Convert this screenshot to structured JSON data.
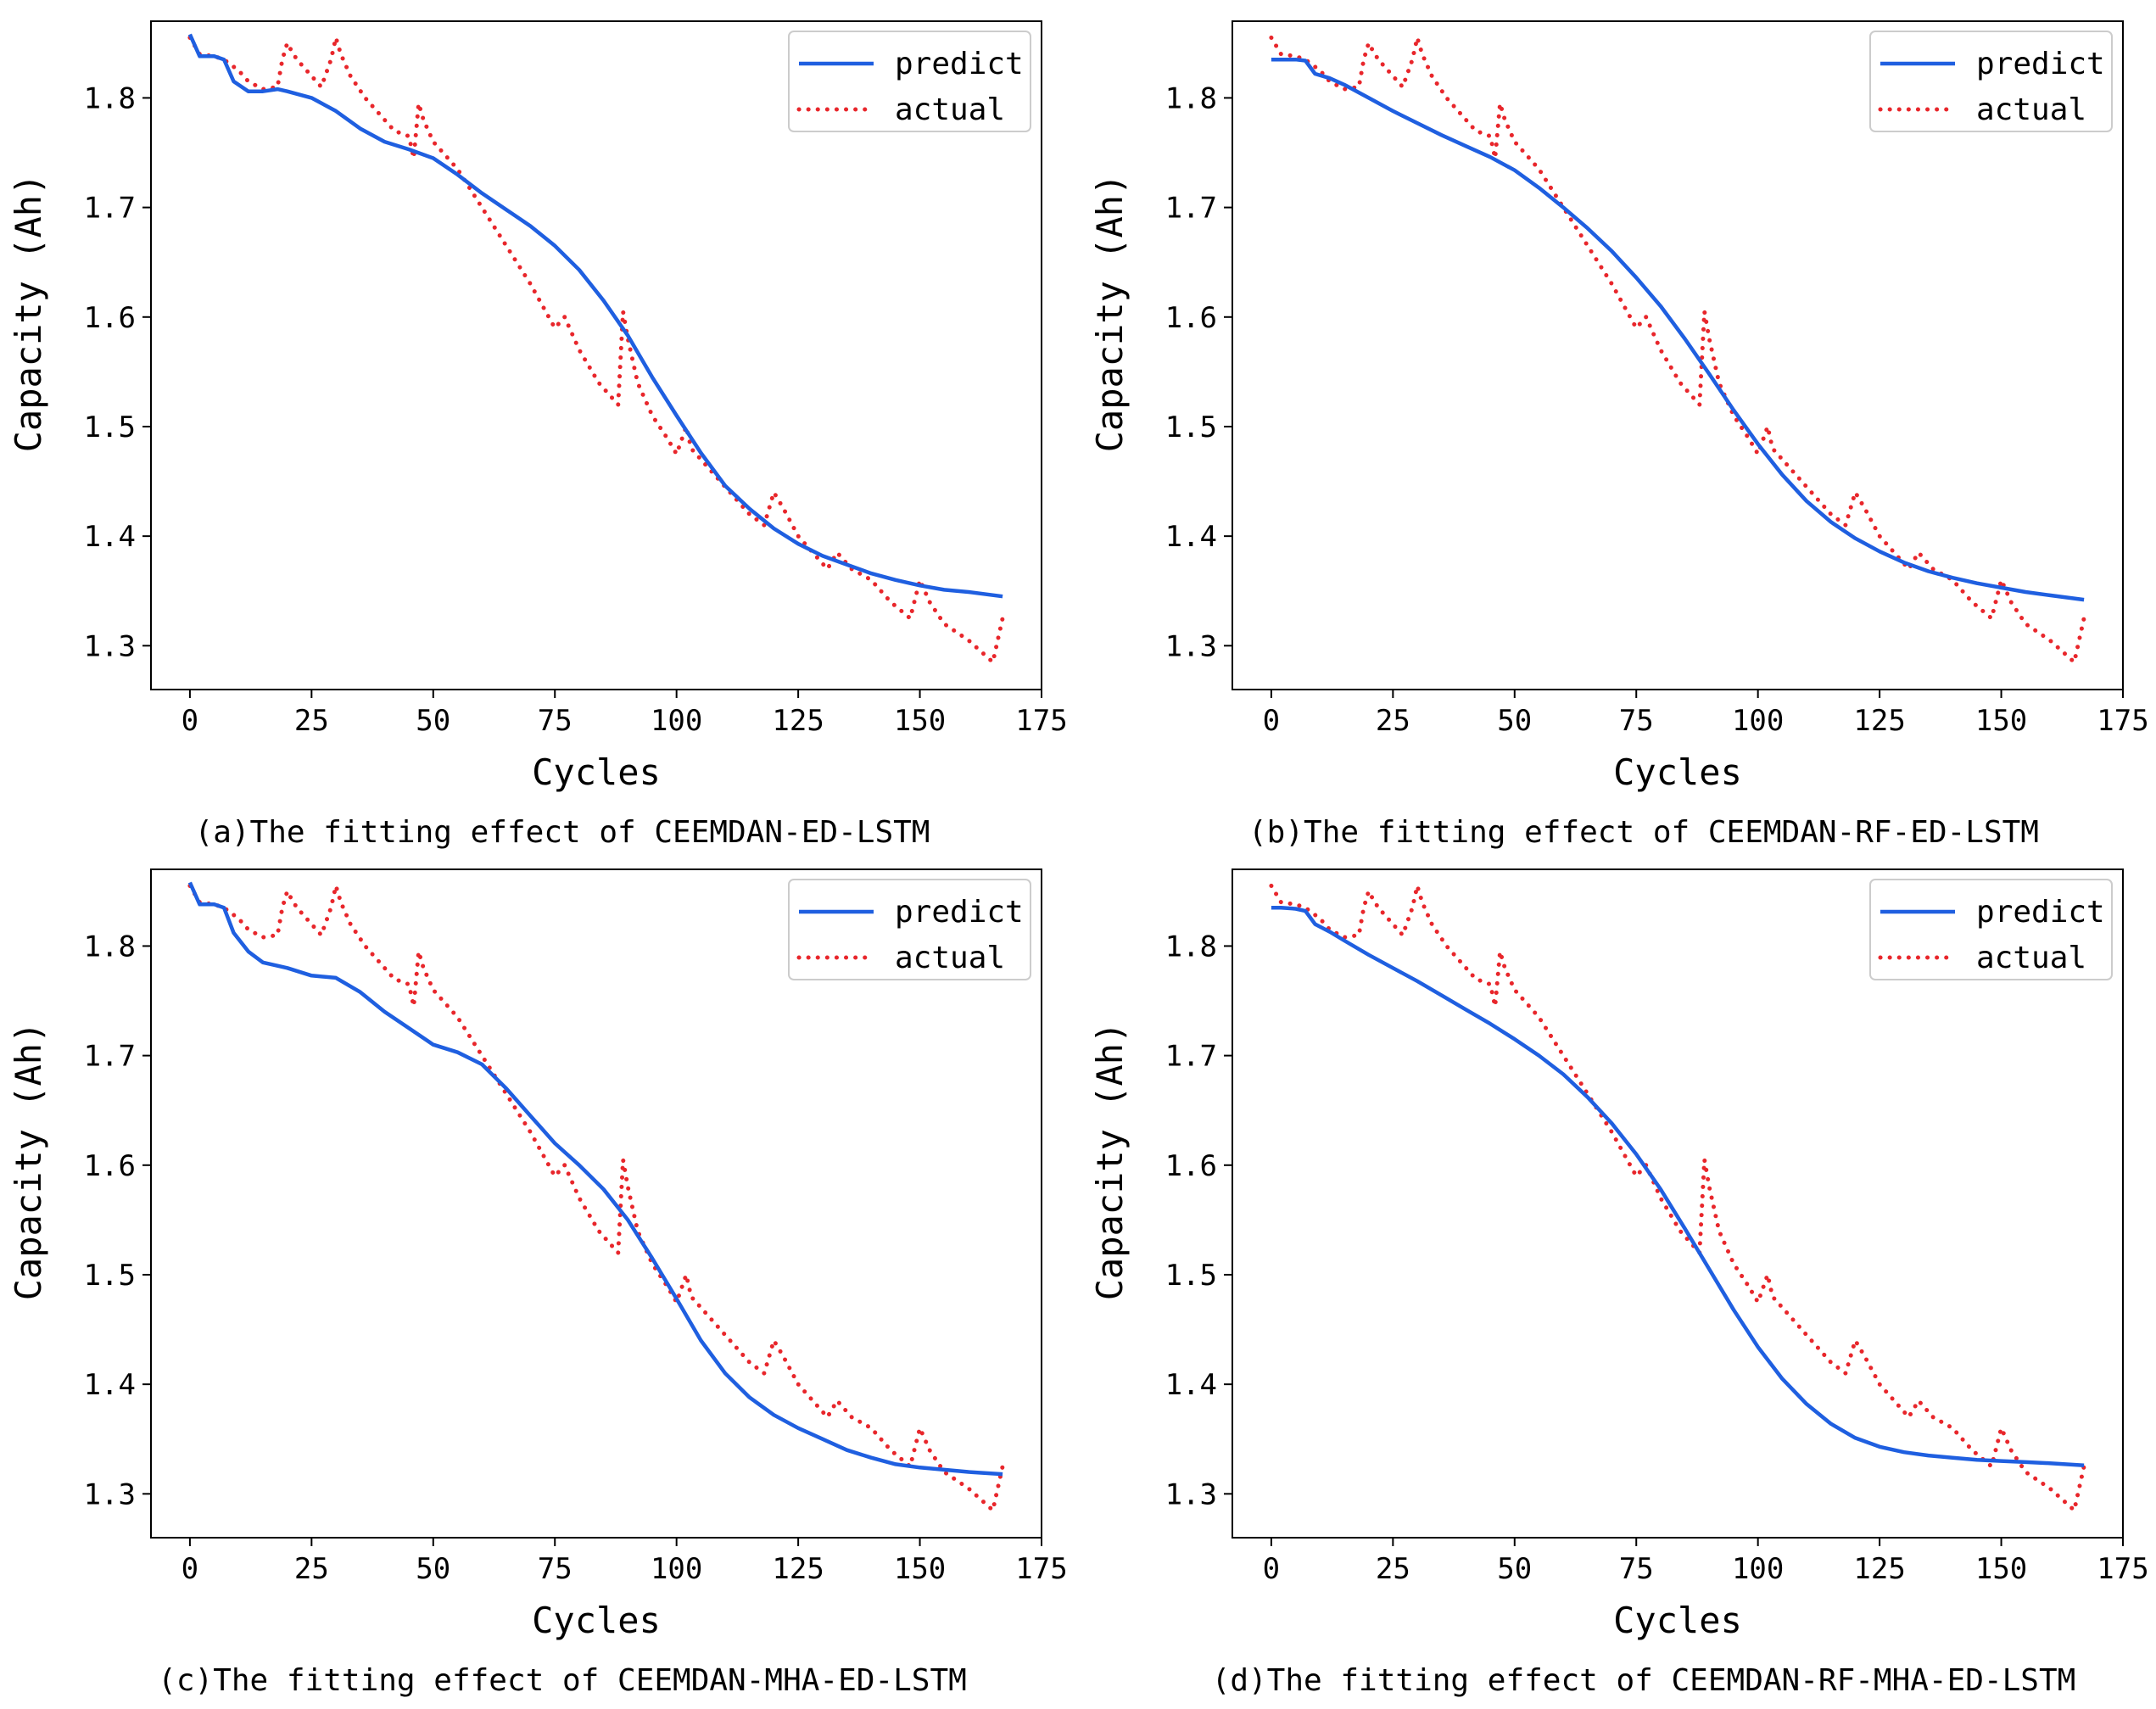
{
  "chart_data": [
    {
      "type": "line",
      "panel": "a",
      "caption": "(a)The fitting effect of CEEMDAN-ED-LSTM",
      "xlabel": "Cycles",
      "ylabel": "Capacity (Ah)",
      "xlim": [
        -8,
        175
      ],
      "ylim": [
        1.26,
        1.87
      ],
      "xticks": [
        0,
        25,
        50,
        75,
        100,
        125,
        150,
        175
      ],
      "yticks": [
        1.3,
        1.4,
        1.5,
        1.6,
        1.7,
        1.8
      ],
      "legend_position": "top-right",
      "series": [
        {
          "name": "predict",
          "style": "solid",
          "color": "#1f5fe0",
          "x": [
            0,
            2,
            5,
            7,
            9,
            12,
            15,
            18,
            20,
            25,
            30,
            35,
            40,
            45,
            50,
            55,
            60,
            65,
            70,
            75,
            80,
            85,
            90,
            95,
            100,
            105,
            110,
            115,
            120,
            125,
            130,
            135,
            140,
            145,
            150,
            155,
            160,
            167
          ],
          "y": [
            1.858,
            1.838,
            1.838,
            1.835,
            1.815,
            1.806,
            1.806,
            1.808,
            1.806,
            1.8,
            1.788,
            1.772,
            1.76,
            1.753,
            1.745,
            1.73,
            1.713,
            1.698,
            1.683,
            1.665,
            1.643,
            1.615,
            1.583,
            1.545,
            1.51,
            1.476,
            1.446,
            1.425,
            1.407,
            1.393,
            1.382,
            1.374,
            1.366,
            1.36,
            1.355,
            1.351,
            1.349,
            1.345
          ]
        },
        {
          "name": "actual",
          "style": "dotted",
          "color": "#e8262b",
          "x": [
            0,
            2,
            5,
            7,
            10,
            12,
            15,
            18,
            19,
            20,
            21,
            22,
            25,
            27,
            29,
            30,
            31,
            33,
            36,
            39,
            42,
            45,
            46,
            47,
            48,
            50,
            52,
            55,
            60,
            65,
            70,
            75,
            77,
            80,
            84,
            86,
            88,
            89,
            90,
            92,
            95,
            98,
            100,
            102,
            103,
            105,
            110,
            115,
            118,
            120,
            122,
            125,
            128,
            131,
            133,
            136,
            140,
            144,
            148,
            150,
            152,
            155,
            160,
            165,
            167
          ],
          "y": [
            1.855,
            1.84,
            1.838,
            1.835,
            1.825,
            1.815,
            1.808,
            1.81,
            1.835,
            1.85,
            1.842,
            1.835,
            1.82,
            1.81,
            1.835,
            1.855,
            1.84,
            1.82,
            1.8,
            1.785,
            1.77,
            1.765,
            1.745,
            1.795,
            1.78,
            1.76,
            1.75,
            1.735,
            1.7,
            1.665,
            1.63,
            1.59,
            1.6,
            1.57,
            1.54,
            1.53,
            1.52,
            1.605,
            1.58,
            1.54,
            1.51,
            1.49,
            1.475,
            1.5,
            1.48,
            1.47,
            1.445,
            1.42,
            1.41,
            1.44,
            1.425,
            1.4,
            1.385,
            1.37,
            1.385,
            1.37,
            1.36,
            1.34,
            1.325,
            1.36,
            1.34,
            1.32,
            1.305,
            1.285,
            1.325
          ]
        }
      ]
    },
    {
      "type": "line",
      "panel": "b",
      "caption": "(b)The fitting effect of CEEMDAN-RF-ED-LSTM",
      "xlabel": "Cycles",
      "ylabel": "Capacity (Ah)",
      "xlim": [
        -8,
        175
      ],
      "ylim": [
        1.26,
        1.87
      ],
      "xticks": [
        0,
        25,
        50,
        75,
        100,
        125,
        150,
        175
      ],
      "yticks": [
        1.3,
        1.4,
        1.5,
        1.6,
        1.7,
        1.8
      ],
      "legend_position": "top-right",
      "series": [
        {
          "name": "predict",
          "style": "solid",
          "color": "#1f5fe0",
          "x": [
            0,
            2,
            5,
            7,
            9,
            12,
            15,
            20,
            25,
            30,
            35,
            40,
            45,
            50,
            55,
            60,
            65,
            70,
            75,
            80,
            85,
            90,
            95,
            100,
            105,
            110,
            115,
            120,
            125,
            130,
            135,
            140,
            145,
            150,
            155,
            160,
            167
          ],
          "y": [
            1.835,
            1.835,
            1.835,
            1.834,
            1.822,
            1.818,
            1.812,
            1.8,
            1.788,
            1.777,
            1.766,
            1.756,
            1.746,
            1.734,
            1.718,
            1.7,
            1.681,
            1.66,
            1.636,
            1.61,
            1.58,
            1.548,
            1.515,
            1.484,
            1.456,
            1.432,
            1.413,
            1.398,
            1.386,
            1.376,
            1.368,
            1.362,
            1.357,
            1.353,
            1.349,
            1.346,
            1.342
          ]
        },
        {
          "name": "actual",
          "style": "dotted",
          "color": "#e8262b",
          "x": [
            0,
            2,
            5,
            7,
            10,
            12,
            15,
            18,
            19,
            20,
            21,
            22,
            25,
            27,
            29,
            30,
            31,
            33,
            36,
            39,
            42,
            45,
            46,
            47,
            48,
            50,
            52,
            55,
            60,
            65,
            70,
            75,
            77,
            80,
            84,
            86,
            88,
            89,
            90,
            92,
            95,
            98,
            100,
            102,
            103,
            105,
            110,
            115,
            118,
            120,
            122,
            125,
            128,
            131,
            133,
            136,
            140,
            144,
            148,
            150,
            152,
            155,
            160,
            165,
            167
          ],
          "y": [
            1.855,
            1.84,
            1.838,
            1.835,
            1.825,
            1.815,
            1.808,
            1.81,
            1.835,
            1.85,
            1.842,
            1.835,
            1.82,
            1.81,
            1.835,
            1.855,
            1.84,
            1.82,
            1.8,
            1.785,
            1.77,
            1.765,
            1.745,
            1.795,
            1.78,
            1.76,
            1.75,
            1.735,
            1.7,
            1.665,
            1.63,
            1.59,
            1.6,
            1.57,
            1.54,
            1.53,
            1.52,
            1.605,
            1.58,
            1.54,
            1.51,
            1.49,
            1.475,
            1.5,
            1.48,
            1.47,
            1.445,
            1.42,
            1.41,
            1.44,
            1.425,
            1.4,
            1.385,
            1.37,
            1.385,
            1.37,
            1.36,
            1.34,
            1.325,
            1.36,
            1.34,
            1.32,
            1.305,
            1.285,
            1.325
          ]
        }
      ]
    },
    {
      "type": "line",
      "panel": "c",
      "caption": "(c)The fitting effect of CEEMDAN-MHA-ED-LSTM",
      "xlabel": "Cycles",
      "ylabel": "Capacity (Ah)",
      "xlim": [
        -8,
        175
      ],
      "ylim": [
        1.26,
        1.87
      ],
      "xticks": [
        0,
        25,
        50,
        75,
        100,
        125,
        150,
        175
      ],
      "yticks": [
        1.3,
        1.4,
        1.5,
        1.6,
        1.7,
        1.8
      ],
      "legend_position": "top-right",
      "series": [
        {
          "name": "predict",
          "style": "solid",
          "color": "#1f5fe0",
          "x": [
            0,
            2,
            5,
            7,
            9,
            12,
            15,
            18,
            20,
            25,
            30,
            35,
            40,
            45,
            50,
            55,
            60,
            65,
            70,
            75,
            80,
            85,
            90,
            95,
            100,
            105,
            110,
            115,
            120,
            125,
            130,
            135,
            140,
            145,
            150,
            155,
            160,
            167
          ],
          "y": [
            1.858,
            1.838,
            1.838,
            1.835,
            1.812,
            1.795,
            1.785,
            1.782,
            1.78,
            1.773,
            1.771,
            1.758,
            1.74,
            1.725,
            1.71,
            1.703,
            1.692,
            1.67,
            1.645,
            1.62,
            1.6,
            1.578,
            1.55,
            1.515,
            1.478,
            1.44,
            1.41,
            1.388,
            1.372,
            1.36,
            1.35,
            1.34,
            1.333,
            1.327,
            1.324,
            1.322,
            1.32,
            1.318
          ]
        },
        {
          "name": "actual",
          "style": "dotted",
          "color": "#e8262b",
          "x": [
            0,
            2,
            5,
            7,
            10,
            12,
            15,
            18,
            19,
            20,
            21,
            22,
            25,
            27,
            29,
            30,
            31,
            33,
            36,
            39,
            42,
            45,
            46,
            47,
            48,
            50,
            52,
            55,
            60,
            65,
            70,
            75,
            77,
            80,
            84,
            86,
            88,
            89,
            90,
            92,
            95,
            98,
            100,
            102,
            103,
            105,
            110,
            115,
            118,
            120,
            122,
            125,
            128,
            131,
            133,
            136,
            140,
            144,
            148,
            150,
            152,
            155,
            160,
            165,
            167
          ],
          "y": [
            1.855,
            1.84,
            1.838,
            1.835,
            1.825,
            1.815,
            1.808,
            1.81,
            1.835,
            1.85,
            1.842,
            1.835,
            1.82,
            1.81,
            1.835,
            1.855,
            1.84,
            1.82,
            1.8,
            1.785,
            1.77,
            1.765,
            1.745,
            1.795,
            1.78,
            1.76,
            1.75,
            1.735,
            1.7,
            1.665,
            1.63,
            1.59,
            1.6,
            1.57,
            1.54,
            1.53,
            1.52,
            1.605,
            1.58,
            1.54,
            1.51,
            1.49,
            1.475,
            1.5,
            1.48,
            1.47,
            1.445,
            1.42,
            1.41,
            1.44,
            1.425,
            1.4,
            1.385,
            1.37,
            1.385,
            1.37,
            1.36,
            1.34,
            1.325,
            1.36,
            1.34,
            1.32,
            1.305,
            1.285,
            1.325
          ]
        }
      ]
    },
    {
      "type": "line",
      "panel": "d",
      "caption": "(d)The fitting effect of CEEMDAN-RF-MHA-ED-LSTM",
      "xlabel": "Cycles",
      "ylabel": "Capacity (Ah)",
      "xlim": [
        -8,
        175
      ],
      "ylim": [
        1.26,
        1.87
      ],
      "xticks": [
        0,
        25,
        50,
        75,
        100,
        125,
        150,
        175
      ],
      "yticks": [
        1.3,
        1.4,
        1.5,
        1.6,
        1.7,
        1.8
      ],
      "legend_position": "top-right",
      "series": [
        {
          "name": "predict",
          "style": "solid",
          "color": "#1f5fe0",
          "x": [
            0,
            2,
            5,
            7,
            9,
            12,
            15,
            20,
            25,
            30,
            35,
            40,
            45,
            50,
            55,
            60,
            65,
            70,
            75,
            80,
            85,
            90,
            95,
            100,
            105,
            110,
            115,
            120,
            125,
            130,
            135,
            140,
            145,
            150,
            155,
            160,
            167
          ],
          "y": [
            1.835,
            1.835,
            1.834,
            1.832,
            1.82,
            1.813,
            1.805,
            1.792,
            1.78,
            1.768,
            1.755,
            1.742,
            1.729,
            1.715,
            1.7,
            1.683,
            1.662,
            1.638,
            1.61,
            1.578,
            1.542,
            1.505,
            1.468,
            1.434,
            1.405,
            1.382,
            1.364,
            1.351,
            1.343,
            1.338,
            1.335,
            1.333,
            1.331,
            1.33,
            1.329,
            1.328,
            1.326
          ]
        },
        {
          "name": "actual",
          "style": "dotted",
          "color": "#e8262b",
          "x": [
            0,
            2,
            5,
            7,
            10,
            12,
            15,
            18,
            19,
            20,
            21,
            22,
            25,
            27,
            29,
            30,
            31,
            33,
            36,
            39,
            42,
            45,
            46,
            47,
            48,
            50,
            52,
            55,
            60,
            65,
            70,
            75,
            77,
            80,
            84,
            86,
            88,
            89,
            90,
            92,
            95,
            98,
            100,
            102,
            103,
            105,
            110,
            115,
            118,
            120,
            122,
            125,
            128,
            131,
            133,
            136,
            140,
            144,
            148,
            150,
            152,
            155,
            160,
            165,
            167
          ],
          "y": [
            1.855,
            1.84,
            1.838,
            1.835,
            1.825,
            1.815,
            1.808,
            1.81,
            1.835,
            1.85,
            1.842,
            1.835,
            1.82,
            1.81,
            1.835,
            1.855,
            1.84,
            1.82,
            1.8,
            1.785,
            1.77,
            1.765,
            1.745,
            1.795,
            1.78,
            1.76,
            1.75,
            1.735,
            1.7,
            1.665,
            1.63,
            1.59,
            1.6,
            1.57,
            1.54,
            1.53,
            1.52,
            1.605,
            1.58,
            1.54,
            1.51,
            1.49,
            1.475,
            1.5,
            1.48,
            1.47,
            1.445,
            1.42,
            1.41,
            1.44,
            1.425,
            1.4,
            1.385,
            1.37,
            1.385,
            1.37,
            1.36,
            1.34,
            1.325,
            1.36,
            1.34,
            1.32,
            1.305,
            1.285,
            1.325
          ]
        }
      ]
    }
  ]
}
